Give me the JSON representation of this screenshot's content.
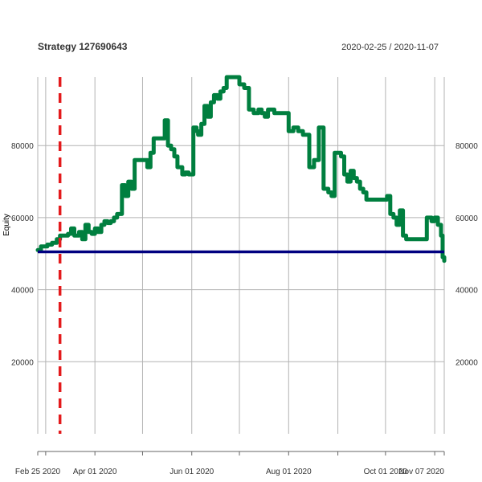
{
  "header": {
    "title": "Strategy 127690643",
    "date_range": "2020-02-25 / 2020-11-07"
  },
  "chart_data": {
    "type": "line",
    "title": "Strategy 127690643",
    "subtitle": "2020-02-25 / 2020-11-07",
    "xlabel": "",
    "ylabel": "Equity",
    "xlim": [
      "2020-02-25",
      "2020-11-07"
    ],
    "ylim": [
      0,
      99000
    ],
    "grid": true,
    "x_tick_labels": [
      {
        "date": "2020-02-25",
        "label": "Feb 25 2020"
      },
      {
        "date": "2020-04-01",
        "label": "Apr 01 2020"
      },
      {
        "date": "2020-06-01",
        "label": "Jun 01 2020"
      },
      {
        "date": "2020-08-01",
        "label": "Aug 01 2020"
      },
      {
        "date": "2020-10-01",
        "label": "Oct 01 2020"
      },
      {
        "date": "2020-11-07",
        "label": "Nov 07 2020"
      }
    ],
    "x_gridlines": [
      "2020-02-25",
      "2020-03-01",
      "2020-04-01",
      "2020-05-01",
      "2020-06-01",
      "2020-07-01",
      "2020-08-01",
      "2020-09-01",
      "2020-10-01",
      "2020-11-01",
      "2020-11-07"
    ],
    "y_ticks": [
      20000,
      40000,
      60000,
      80000
    ],
    "y_tick_labels": [
      "20000",
      "40000",
      "60000",
      "80000"
    ],
    "vertical_marker": {
      "date": "2020-03-10",
      "color": "#e31a1c",
      "style": "dashed"
    },
    "horizontal_line": {
      "value": 50500,
      "color": "#000080"
    },
    "colors": {
      "equity": "#007f3f",
      "marker": "#e31a1c",
      "baseline": "#000080",
      "grid": "#b3b3b3"
    },
    "series": [
      {
        "color": "#007f3f",
        "x": [
          "2020-02-25",
          "2020-02-27",
          "2020-03-02",
          "2020-03-05",
          "2020-03-08",
          "2020-03-10",
          "2020-03-15",
          "2020-03-17",
          "2020-03-19",
          "2020-03-22",
          "2020-03-24",
          "2020-03-26",
          "2020-03-28",
          "2020-03-30",
          "2020-04-01",
          "2020-04-03",
          "2020-04-05",
          "2020-04-07",
          "2020-04-09",
          "2020-04-11",
          "2020-04-13",
          "2020-04-15",
          "2020-04-18",
          "2020-04-20",
          "2020-04-22",
          "2020-04-24",
          "2020-04-26",
          "2020-04-28",
          "2020-04-30",
          "2020-05-02",
          "2020-05-04",
          "2020-05-06",
          "2020-05-08",
          "2020-05-15",
          "2020-05-17",
          "2020-05-19",
          "2020-05-21",
          "2020-05-23",
          "2020-05-26",
          "2020-05-28",
          "2020-05-30",
          "2020-06-02",
          "2020-06-04",
          "2020-06-05",
          "2020-06-07",
          "2020-06-09",
          "2020-06-11",
          "2020-06-13",
          "2020-06-15",
          "2020-06-17",
          "2020-06-19",
          "2020-06-21",
          "2020-06-23",
          "2020-06-25",
          "2020-06-28",
          "2020-07-01",
          "2020-07-04",
          "2020-07-07",
          "2020-07-10",
          "2020-07-13",
          "2020-07-15",
          "2020-07-17",
          "2020-07-19",
          "2020-07-23",
          "2020-07-27",
          "2020-08-01",
          "2020-08-04",
          "2020-08-07",
          "2020-08-10",
          "2020-08-14",
          "2020-08-17",
          "2020-08-20",
          "2020-08-23",
          "2020-08-26",
          "2020-08-28",
          "2020-08-30",
          "2020-09-01",
          "2020-09-03",
          "2020-09-05",
          "2020-09-07",
          "2020-09-09",
          "2020-09-11",
          "2020-09-13",
          "2020-09-15",
          "2020-09-17",
          "2020-09-19",
          "2020-09-21",
          "2020-09-23",
          "2020-09-25",
          "2020-09-28",
          "2020-09-30",
          "2020-10-02",
          "2020-10-04",
          "2020-10-06",
          "2020-10-08",
          "2020-10-10",
          "2020-10-12",
          "2020-10-14",
          "2020-10-16",
          "2020-10-18",
          "2020-10-25",
          "2020-10-27",
          "2020-10-30",
          "2020-11-01",
          "2020-11-03",
          "2020-11-05",
          "2020-11-06",
          "2020-11-07"
        ],
        "values": [
          51000,
          52000,
          52500,
          53000,
          54000,
          55000,
          55500,
          57000,
          55000,
          56000,
          54000,
          58000,
          56000,
          55500,
          57000,
          56000,
          58000,
          59000,
          58500,
          59000,
          60000,
          61000,
          69000,
          66000,
          70000,
          68000,
          76000,
          76000,
          76000,
          76000,
          74000,
          78000,
          82000,
          87000,
          80000,
          79000,
          77000,
          74000,
          72000,
          72500,
          72000,
          85000,
          84000,
          83000,
          86000,
          91000,
          88000,
          92000,
          94000,
          93000,
          95000,
          96000,
          99000,
          99000,
          99000,
          97000,
          96000,
          90000,
          89000,
          90000,
          89000,
          88000,
          90000,
          89000,
          89000,
          84000,
          85000,
          84000,
          83000,
          74000,
          76000,
          85000,
          68000,
          67000,
          66000,
          78000,
          78000,
          77000,
          72000,
          70000,
          73000,
          71000,
          70000,
          68000,
          67000,
          65000,
          65000,
          65000,
          65000,
          65000,
          65000,
          66000,
          61000,
          60000,
          58000,
          62000,
          55000,
          54000,
          54000,
          54000,
          54000,
          60000,
          59000,
          60000,
          58000,
          55000,
          49000,
          48000
        ]
      }
    ]
  }
}
